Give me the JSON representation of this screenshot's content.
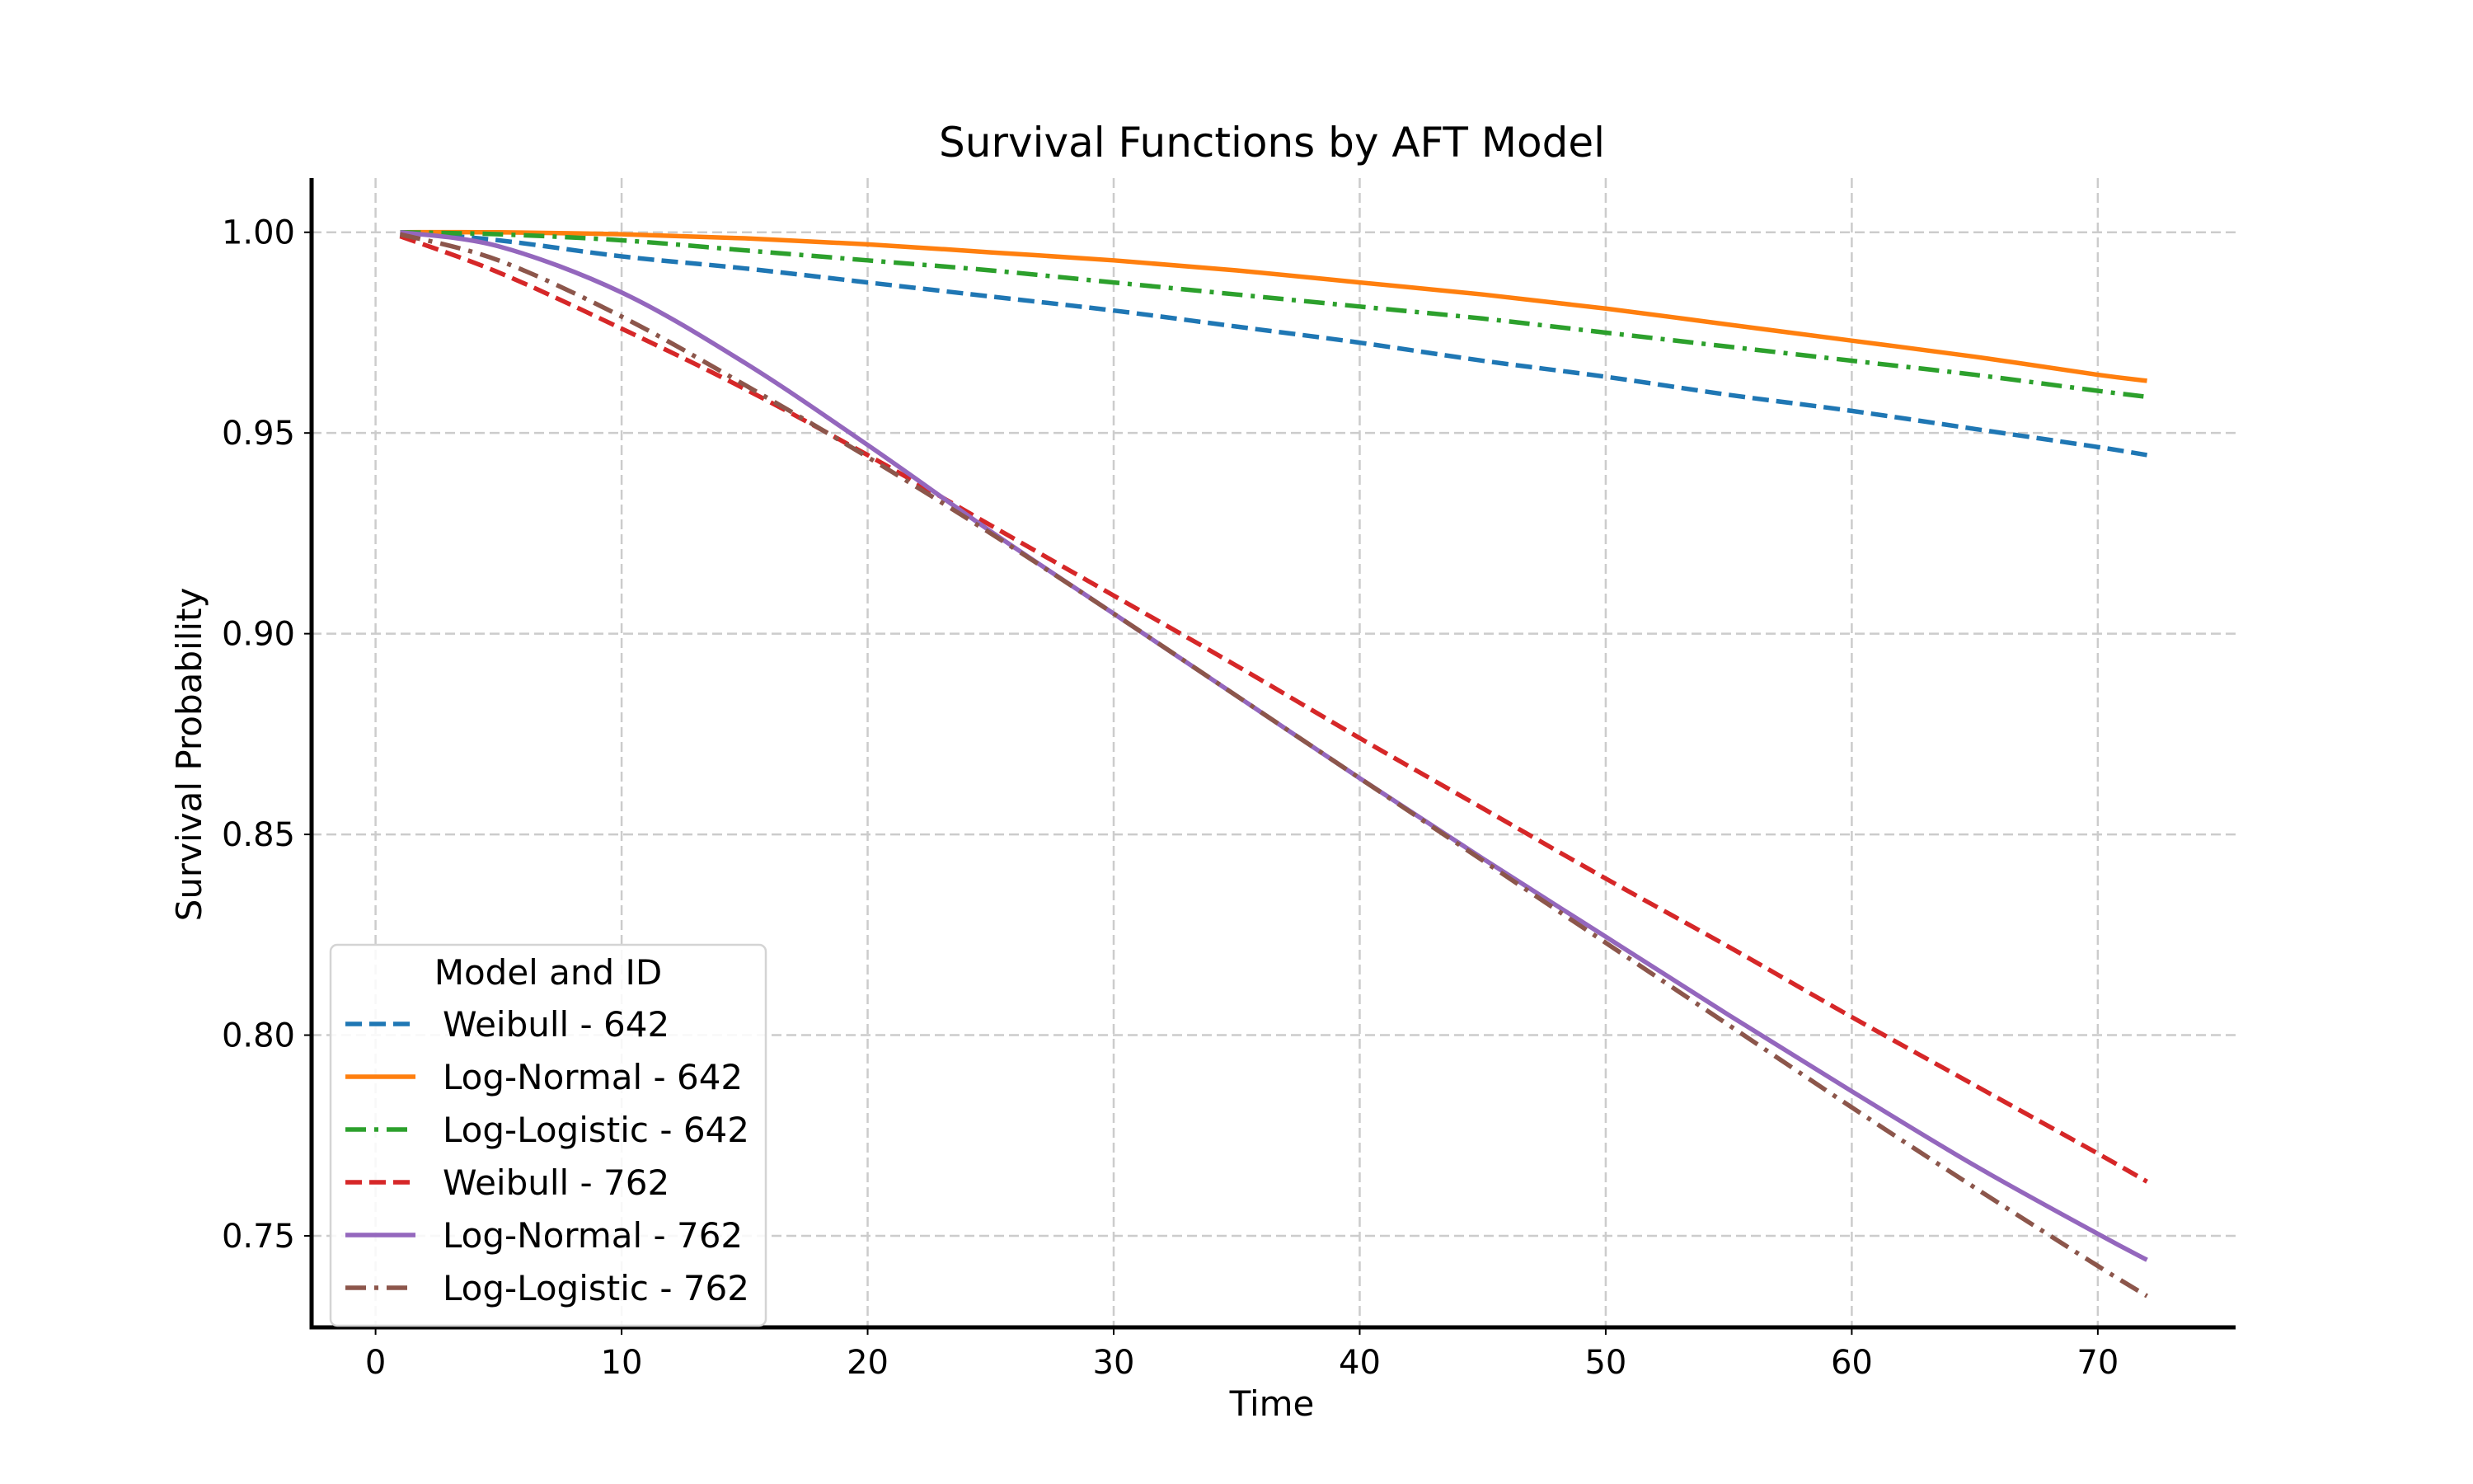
{
  "chart_data": {
    "type": "line",
    "title": "Survival Functions by AFT Model",
    "xlabel": "Time",
    "ylabel": "Survival Probability",
    "xlim": [
      -2.6,
      75.6
    ],
    "ylim": [
      0.7272,
      1.0135
    ],
    "xticks": [
      0,
      10,
      20,
      30,
      40,
      50,
      60,
      70
    ],
    "yticks": [
      0.75,
      0.8,
      0.85,
      0.9,
      0.95,
      1.0
    ],
    "ytick_labels": [
      "0.75",
      "0.80",
      "0.85",
      "0.90",
      "0.95",
      "1.00"
    ],
    "grid": true,
    "legend": {
      "title": "Model and ID",
      "placement": "lower-left"
    },
    "series": [
      {
        "name": "Weibull - 642",
        "color": "#1f77b4",
        "style": "dashed",
        "x": [
          1,
          5,
          10,
          15,
          20,
          25,
          30,
          35,
          40,
          45,
          50,
          55,
          60,
          65,
          70,
          72
        ],
        "y": [
          1.0,
          0.998,
          0.994,
          0.991,
          0.9875,
          0.984,
          0.9805,
          0.9765,
          0.9725,
          0.968,
          0.964,
          0.9595,
          0.9555,
          0.951,
          0.9465,
          0.9445
        ]
      },
      {
        "name": "Log-Normal - 642",
        "color": "#ff7f0e",
        "style": "solid",
        "x": [
          1,
          5,
          10,
          15,
          20,
          25,
          30,
          35,
          40,
          45,
          50,
          55,
          60,
          65,
          70,
          72
        ],
        "y": [
          1.0,
          1.0,
          0.9995,
          0.9985,
          0.997,
          0.995,
          0.993,
          0.9905,
          0.9875,
          0.9845,
          0.981,
          0.977,
          0.973,
          0.969,
          0.9645,
          0.963
        ]
      },
      {
        "name": "Log-Logistic - 642",
        "color": "#2ca02c",
        "style": "dashdot",
        "x": [
          1,
          5,
          10,
          15,
          20,
          25,
          30,
          35,
          40,
          45,
          50,
          55,
          60,
          65,
          70,
          72
        ],
        "y": [
          1.0,
          0.9995,
          0.998,
          0.9955,
          0.993,
          0.9905,
          0.9875,
          0.9845,
          0.9815,
          0.9785,
          0.975,
          0.9715,
          0.968,
          0.9645,
          0.9605,
          0.959
        ]
      },
      {
        "name": "Weibull - 762",
        "color": "#d62728",
        "style": "dashed",
        "x": [
          1,
          5,
          10,
          15,
          20,
          25,
          30,
          35,
          40,
          45,
          50,
          55,
          60,
          65,
          70,
          72
        ],
        "y": [
          0.999,
          0.99,
          0.976,
          0.961,
          0.9445,
          0.927,
          0.9095,
          0.892,
          0.874,
          0.8565,
          0.839,
          0.822,
          0.8045,
          0.7875,
          0.7705,
          0.7635
        ]
      },
      {
        "name": "Log-Normal - 762",
        "color": "#9467bd",
        "style": "solid",
        "x": [
          1,
          5,
          10,
          15,
          20,
          25,
          30,
          35,
          40,
          45,
          50,
          55,
          60,
          65,
          70,
          72
        ],
        "y": [
          1.0,
          0.9965,
          0.985,
          0.9675,
          0.947,
          0.9255,
          0.905,
          0.8845,
          0.864,
          0.844,
          0.8245,
          0.805,
          0.786,
          0.7675,
          0.7505,
          0.744
        ]
      },
      {
        "name": "Log-Logistic - 762",
        "color": "#8c564b",
        "style": "dashdot",
        "x": [
          1,
          5,
          10,
          15,
          20,
          25,
          30,
          35,
          40,
          45,
          50,
          55,
          60,
          65,
          70,
          72
        ],
        "y": [
          0.9995,
          0.993,
          0.979,
          0.962,
          0.944,
          0.925,
          0.905,
          0.8845,
          0.864,
          0.8435,
          0.823,
          0.8025,
          0.782,
          0.762,
          0.7425,
          0.735
        ]
      }
    ]
  }
}
